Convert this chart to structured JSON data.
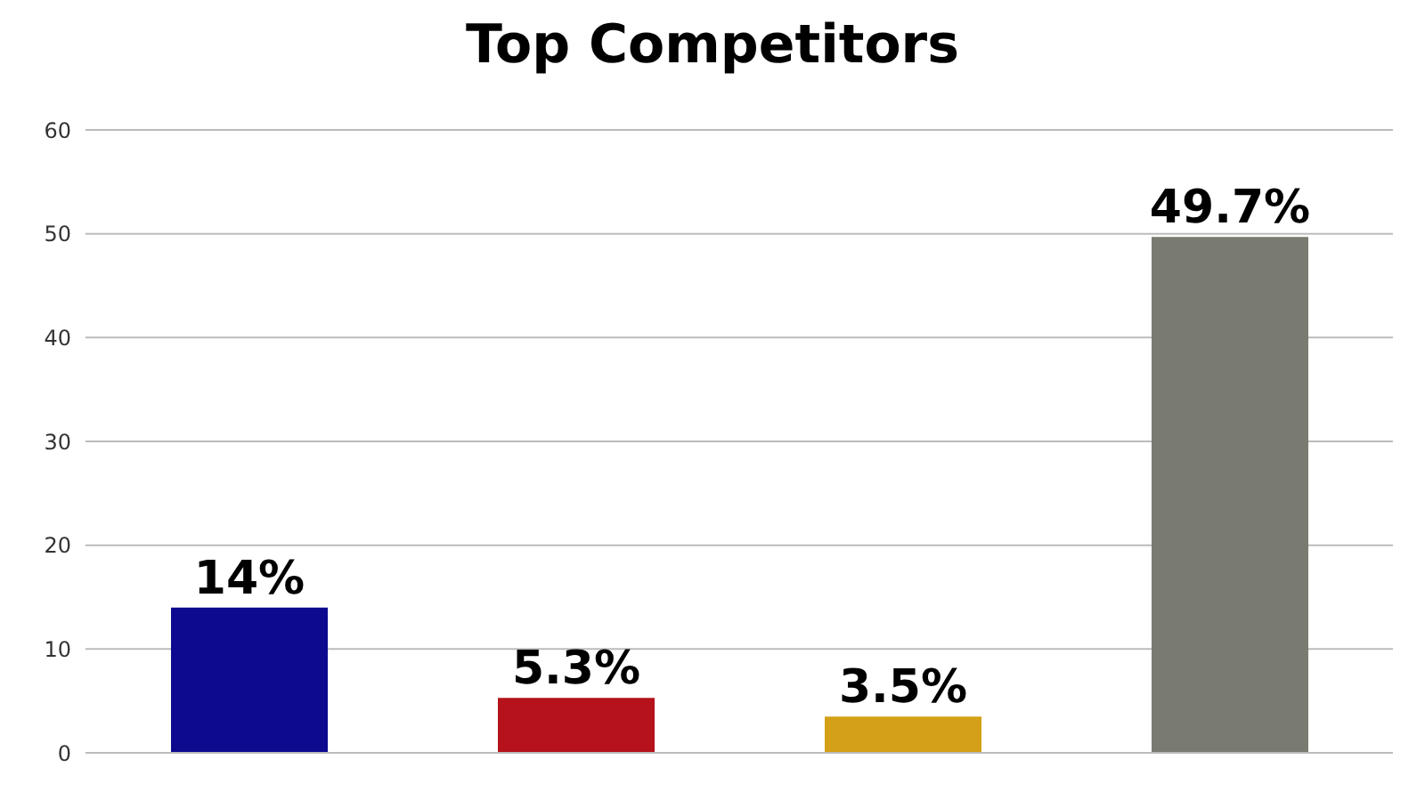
{
  "chart_data": {
    "type": "bar",
    "title": "Top Competitors",
    "categories": [
      null,
      null,
      null,
      null
    ],
    "values": [
      14,
      5.3,
      3.5,
      49.7
    ],
    "colors": [
      "#0e0a8f",
      "#b5121b",
      "#d4a017",
      "#7a7b70"
    ],
    "value_labels": [
      "14%",
      "5.3%",
      "3.5%",
      "49.7%"
    ],
    "ylim": [
      0,
      60
    ],
    "yticks": [
      0,
      10,
      20,
      30,
      40,
      50,
      60
    ],
    "grid": "y"
  }
}
